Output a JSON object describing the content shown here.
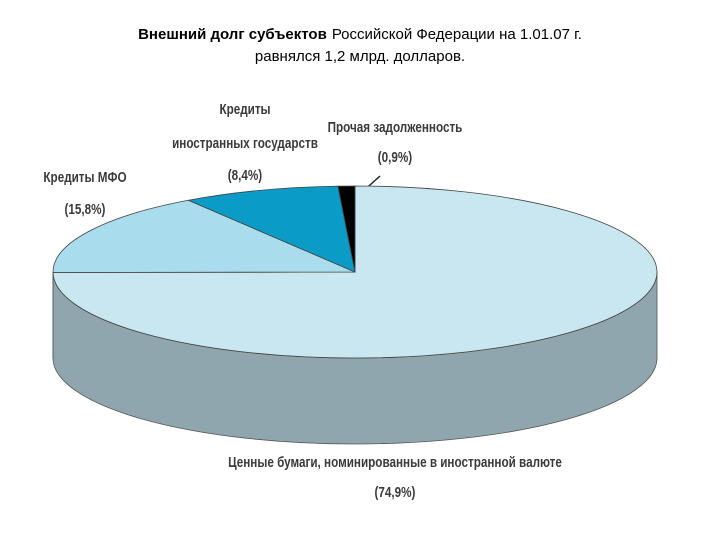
{
  "chart_data": {
    "type": "pie3d",
    "title": [
      "Внешний долг субъектов",
      "Российской Федерации на 1.01.07 г.",
      "равнялся 1,2 млрд. долларов."
    ],
    "categories": [
      [
        "Ценные бумаги, номинированные в иностранной валюте"
      ],
      [
        "Кредиты МФО"
      ],
      [
        "Кредиты",
        "иностранных государств"
      ],
      [
        "Прочая задолженность"
      ]
    ],
    "values": [
      74.9,
      15.8,
      8.4,
      0.9
    ],
    "value_labels": [
      "(74,9%)",
      "(15,8%)",
      "(8,4%)",
      "(0,9%)"
    ],
    "colors": [
      "#c8e7f1",
      "#a9dcec",
      "#0a9bc6",
      "#000000"
    ]
  }
}
